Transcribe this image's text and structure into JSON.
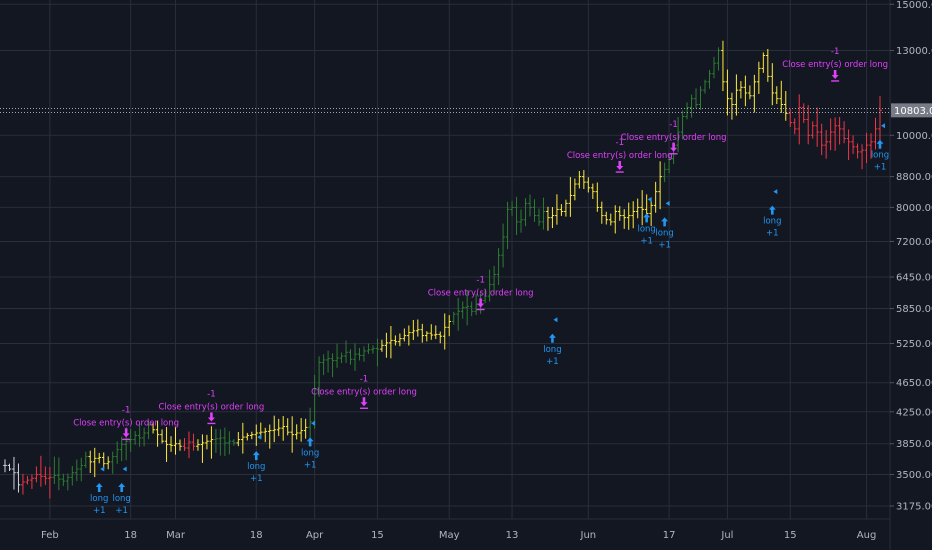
{
  "chart_data": {
    "type": "ohlc",
    "y_scale": "log",
    "ylim": [
      3050,
      15200
    ],
    "grid": true,
    "y_ticks": [
      {
        "value": 3175,
        "label": "3175.00"
      },
      {
        "value": 3500,
        "label": "3500.00"
      },
      {
        "value": 3850,
        "label": "3850.00"
      },
      {
        "value": 4250,
        "label": "4250.00"
      },
      {
        "value": 4650,
        "label": "4650.00"
      },
      {
        "value": 5250,
        "label": "5250.00"
      },
      {
        "value": 5850,
        "label": "5850.00"
      },
      {
        "value": 6450,
        "label": "6450.00"
      },
      {
        "value": 7200,
        "label": "7200.00"
      },
      {
        "value": 8000,
        "label": "8000.00"
      },
      {
        "value": 8800,
        "label": "8800.00"
      },
      {
        "value": 10000,
        "label": "10000.00"
      },
      {
        "value": 13000,
        "label": "13000.00"
      },
      {
        "value": 15000,
        "label": "15000.00"
      }
    ],
    "x_ticks": [
      {
        "index": 10,
        "label": "Feb"
      },
      {
        "index": 28,
        "label": "18"
      },
      {
        "index": 38,
        "label": "Mar"
      },
      {
        "index": 56,
        "label": "18"
      },
      {
        "index": 69,
        "label": "Apr"
      },
      {
        "index": 83,
        "label": "15"
      },
      {
        "index": 99,
        "label": "May"
      },
      {
        "index": 113,
        "label": "13"
      },
      {
        "index": 130,
        "label": "Jun"
      },
      {
        "index": 148,
        "label": "17"
      },
      {
        "index": 161,
        "label": "Jul"
      },
      {
        "index": 175,
        "label": "15"
      },
      {
        "index": 192,
        "label": "Aug"
      }
    ],
    "last_price": {
      "value": 10803.05,
      "label": "10803.05"
    },
    "bar_colors": {
      "grey": "#d1d4dc",
      "red": "#f23645",
      "green": "#2e7d32",
      "yellow": "#ffeb3b"
    },
    "close_points": [
      3600,
      3560,
      3520,
      3390,
      3420,
      3440,
      3460,
      3500,
      3480,
      3460,
      3470,
      3490,
      3450,
      3430,
      3470,
      3520,
      3560,
      3600,
      3700,
      3640,
      3680,
      3690,
      3620,
      3640,
      3700,
      3780,
      3840,
      3880,
      3900,
      3950,
      3920,
      3980,
      4080,
      4020,
      3960,
      3880,
      3840,
      3830,
      3850,
      3820,
      3800,
      3870,
      3820,
      3840,
      3860,
      3880,
      3900,
      3910,
      3920,
      3860,
      3880,
      3860,
      3900,
      3930,
      3950,
      3960,
      3980,
      3990,
      4000,
      4010,
      4020,
      4040,
      4060,
      3990,
      3960,
      3980,
      4010,
      4050,
      4120,
      4550,
      4950,
      4990,
      5010,
      4980,
      5020,
      5050,
      5110,
      5000,
      5080,
      5060,
      5130,
      5150,
      5170,
      5160,
      5220,
      5260,
      5300,
      5280,
      5330,
      5380,
      5430,
      5460,
      5480,
      5380,
      5420,
      5390,
      5400,
      5370,
      5520,
      5620,
      5750,
      5800,
      5870,
      5890,
      5800,
      5920,
      6000,
      6080,
      6300,
      6500,
      6900,
      7300,
      7950,
      8000,
      7650,
      7700,
      8100,
      8000,
      7800,
      7650,
      7900,
      7750,
      7800,
      7950,
      7900,
      8100,
      8300,
      8600,
      8800,
      8650,
      8500,
      8400,
      8000,
      7800,
      7700,
      7650,
      7900,
      7800,
      7750,
      7800,
      7900,
      8000,
      7950,
      7850,
      8050,
      8400,
      8800,
      9000,
      9300,
      9700,
      10100,
      10600,
      10900,
      11200,
      11000,
      11500,
      11800,
      12100,
      12500,
      13000,
      11800,
      11200,
      11000,
      11500,
      11600,
      11400,
      11300,
      11800,
      12300,
      12800,
      12000,
      11400,
      11200,
      11000,
      10700,
      10400,
      10200,
      10900,
      10500,
      10000,
      10300,
      10100,
      9700,
      9800,
      10100,
      10300,
      10200,
      9900,
      9800,
      9650,
      9500,
      9550,
      9700,
      9800,
      10200,
      10803.05
    ],
    "signals": [
      {
        "index": 21,
        "price": 3560,
        "type": "entry",
        "label": "long",
        "qty": "+1"
      },
      {
        "index": 26,
        "price": 3560,
        "type": "entry",
        "label": "long",
        "qty": "+1"
      },
      {
        "index": 27,
        "price": 3760,
        "type": "close",
        "label": "Close entry(s) order long",
        "qty": "-1"
      },
      {
        "index": 56,
        "price": 3930,
        "type": "entry",
        "label": "long",
        "qty": "+1"
      },
      {
        "index": 46,
        "price": 3950,
        "type": "close",
        "label": "Close entry(s) order long",
        "qty": "-1"
      },
      {
        "index": 80,
        "price": 4140,
        "type": "close",
        "label": "Close entry(s) order long",
        "qty": "-1"
      },
      {
        "index": 68,
        "price": 4100,
        "type": "entry",
        "label": "long",
        "qty": "+1"
      },
      {
        "index": 106,
        "price": 5620,
        "type": "close",
        "label": "Close entry(s) order long",
        "qty": "-1"
      },
      {
        "index": 122,
        "price": 5650,
        "type": "entry",
        "label": "long",
        "qty": "+1"
      },
      {
        "index": 137,
        "price": 8600,
        "type": "close",
        "label": "Close entry(s) order long",
        "qty": "-1"
      },
      {
        "index": 143,
        "price": 8200,
        "type": "entry",
        "label": "long",
        "qty": "+1"
      },
      {
        "index": 147,
        "price": 8100,
        "type": "entry",
        "label": "long",
        "qty": "+1"
      },
      {
        "index": 149,
        "price": 9100,
        "type": "close",
        "label": "Close entry(s) order long",
        "qty": "-1"
      },
      {
        "index": 171,
        "price": 8400,
        "type": "entry",
        "label": "long",
        "qty": "+1"
      },
      {
        "index": 185,
        "price": 11400,
        "type": "close",
        "label": "Close entry(s) order long",
        "qty": "-1"
      },
      {
        "index": 226,
        "price": 10300,
        "type": "entry",
        "label": "long",
        "qty": "+1"
      }
    ]
  }
}
